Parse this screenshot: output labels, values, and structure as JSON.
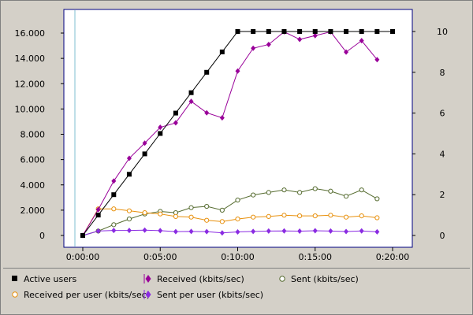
{
  "chart_data": {
    "type": "line",
    "x": [
      "0:00:00",
      "0:01:00",
      "0:02:00",
      "0:03:00",
      "0:04:00",
      "0:05:00",
      "0:06:00",
      "0:07:00",
      "0:08:00",
      "0:09:00",
      "0:10:00",
      "0:11:00",
      "0:12:00",
      "0:13:00",
      "0:14:00",
      "0:15:00",
      "0:16:00",
      "0:17:00",
      "0:18:00",
      "0:19:00",
      "0:20:00"
    ],
    "x_ticks": [
      "0:00:00",
      "0:05:00",
      "0:10:00",
      "0:15:00",
      "0:20:00"
    ],
    "y_left_ticks": [
      "0",
      "2.000",
      "4.000",
      "6.000",
      "8.000",
      "10.000",
      "12.000",
      "14.000",
      "16.000"
    ],
    "y_right_ticks": [
      "0",
      "2",
      "4",
      "6",
      "8",
      "10"
    ],
    "ylim_left": [
      0,
      16000
    ],
    "ylim_right": [
      0,
      10
    ],
    "grid": false,
    "legend_position": "bottom",
    "series": [
      {
        "name": "Active users",
        "axis": "right",
        "color": "#000000",
        "marker": "filled-square",
        "values": [
          0,
          1,
          2,
          3,
          4,
          5,
          6,
          7,
          8,
          9,
          10,
          10,
          10,
          10,
          10,
          10,
          10,
          10,
          10,
          10,
          10
        ]
      },
      {
        "name": "Received (kbits/sec)",
        "axis": "left",
        "color": "#990099",
        "marker": "filled-diamond",
        "values": [
          0,
          2050,
          4300,
          6100,
          7300,
          8550,
          8900,
          10600,
          9700,
          9300,
          13000,
          14800,
          15100,
          16100,
          15500,
          15800,
          16100,
          14500,
          15400,
          13900,
          null
        ]
      },
      {
        "name": "Sent (kbits/sec)",
        "axis": "left",
        "color": "#556b2f",
        "marker": "open-circle",
        "values": [
          0,
          350,
          850,
          1300,
          1700,
          1900,
          1800,
          2200,
          2300,
          2000,
          2800,
          3200,
          3400,
          3600,
          3400,
          3700,
          3500,
          3100,
          3600,
          2900,
          null
        ]
      },
      {
        "name": "Received per user (kbits/sec)",
        "axis": "left",
        "color": "#e8900c",
        "marker": "open-circle",
        "values": [
          0,
          2100,
          2100,
          1950,
          1800,
          1700,
          1500,
          1450,
          1200,
          1100,
          1300,
          1450,
          1500,
          1600,
          1550,
          1550,
          1600,
          1450,
          1550,
          1400,
          null
        ]
      },
      {
        "name": "Sent per user (kbits/sec)",
        "axis": "left",
        "color": "#8a2be2",
        "marker": "filled-diamond",
        "values": [
          0,
          350,
          400,
          400,
          420,
          380,
          300,
          320,
          300,
          200,
          280,
          320,
          350,
          360,
          340,
          370,
          350,
          310,
          360,
          290,
          null
        ]
      }
    ]
  }
}
